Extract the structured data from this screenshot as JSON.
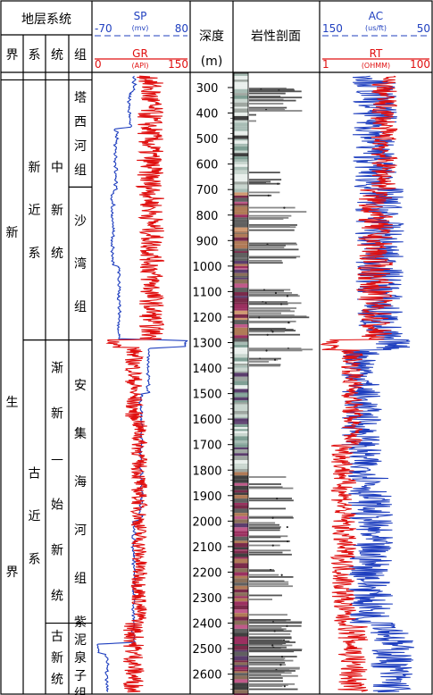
{
  "header": {
    "strat_title": "地层系统",
    "col_jie": "界",
    "col_xi": "系",
    "col_tong": "统",
    "col_zu": "组",
    "depth_title": "深度",
    "depth_unit": "(m)",
    "lith_title": "岩性剖面"
  },
  "curves": {
    "sp": {
      "name": "SP",
      "unit": "(mv)",
      "min": "-70",
      "max": "80",
      "color": "#1f3fbf"
    },
    "gr": {
      "name": "GR",
      "unit": "(API)",
      "min": "0",
      "max": "150",
      "color": "#e01010"
    },
    "ac": {
      "name": "AC",
      "unit": "(us/ft)",
      "min": "150",
      "max": "50",
      "color": "#1f3fbf"
    },
    "rt": {
      "name": "RT",
      "unit": "(OHMM)",
      "min": "1",
      "max": "100",
      "color": "#e01010"
    }
  },
  "strat": {
    "jie": [
      {
        "chars": [
          "新",
          "生",
          "界"
        ],
        "top": 270,
        "bottom": 2670
      }
    ],
    "xi": [
      {
        "chars": [
          "新",
          "近",
          "系"
        ],
        "top": 270,
        "bottom": 1290
      },
      {
        "chars": [
          "古",
          "近",
          "系"
        ],
        "top": 1290,
        "bottom": 2670
      }
    ],
    "tong": [
      {
        "chars": [
          "中",
          "新",
          "统"
        ],
        "top": 270,
        "bottom": 1290
      },
      {
        "chars": [
          "渐",
          "新",
          "—",
          "始",
          "新",
          "统"
        ],
        "top": 1290,
        "bottom": 2400
      },
      {
        "chars": [
          "古",
          "新",
          "统"
        ],
        "top": 2400,
        "bottom": 2670
      }
    ],
    "zu": [
      {
        "chars": [
          "塔",
          "西",
          "河",
          "组"
        ],
        "top": 270,
        "bottom": 690
      },
      {
        "chars": [
          "沙",
          "湾",
          "组"
        ],
        "top": 690,
        "bottom": 1290
      },
      {
        "chars": [
          "安",
          "集",
          "海",
          "河",
          "组"
        ],
        "top": 1290,
        "bottom": 2400
      },
      {
        "chars": [
          "紫",
          "泥",
          "泉",
          "子",
          "组"
        ],
        "top": 2400,
        "bottom": 2670
      }
    ]
  },
  "depth": {
    "min_m": 255,
    "max_m": 2670,
    "ticks": [
      "300",
      "400",
      "500",
      "600",
      "700",
      "800",
      "900",
      "1000",
      "1100",
      "1200",
      "1300",
      "1400",
      "1500",
      "1600",
      "1700",
      "1800",
      "1900",
      "2000",
      "2100",
      "2200",
      "2300",
      "2400",
      "2500",
      "2600"
    ]
  },
  "lithology": {
    "colors": [
      "#7f9f94",
      "#a7bcb4",
      "#c9d6cf",
      "#e9efec",
      "#8a6f5a",
      "#b07a57",
      "#d09a72",
      "#7a2a4a",
      "#9b3060",
      "#5b3d6d",
      "#c05a8a",
      "#606060",
      "#404040",
      "#9ea6a0"
    ]
  }
}
